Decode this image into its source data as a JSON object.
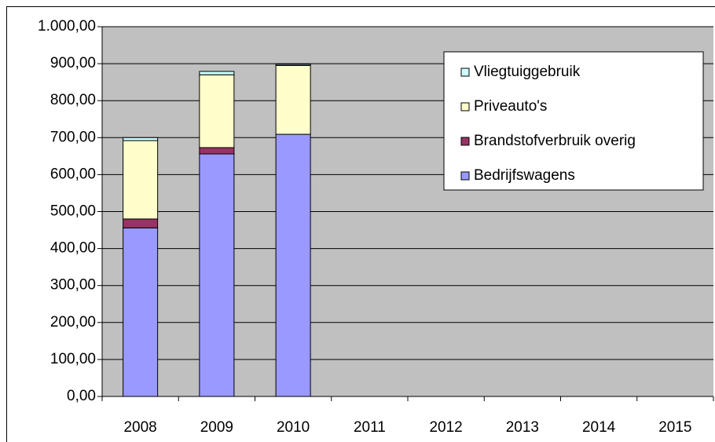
{
  "chart_data": {
    "type": "stacked_bar",
    "categories": [
      "2008",
      "2009",
      "2010",
      "2011",
      "2012",
      "2013",
      "2014",
      "2015"
    ],
    "series": [
      {
        "name": "Bedrijfswagens",
        "color": "#9999ff",
        "values": [
          456,
          656,
          709,
          null,
          null,
          null,
          null,
          null
        ]
      },
      {
        "name": "Brandstofverbruik overig",
        "color": "#993366",
        "values": [
          24,
          17,
          0,
          null,
          null,
          null,
          null,
          null
        ]
      },
      {
        "name": "Priveauto's",
        "color": "#ffffcc",
        "values": [
          212,
          197,
          186,
          null,
          null,
          null,
          null,
          null
        ]
      },
      {
        "name": "Vliegtuiggebruik",
        "color": "#ccffff",
        "values": [
          8,
          9,
          3,
          null,
          null,
          null,
          null,
          null
        ]
      }
    ],
    "ylim": [
      0,
      1000
    ],
    "yticks": [
      {
        "value": 0,
        "label": "0,00"
      },
      {
        "value": 100,
        "label": "100,00"
      },
      {
        "value": 200,
        "label": "200,00"
      },
      {
        "value": 300,
        "label": "300,00"
      },
      {
        "value": 400,
        "label": "400,00"
      },
      {
        "value": 500,
        "label": "500,00"
      },
      {
        "value": 600,
        "label": "600,00"
      },
      {
        "value": 700,
        "label": "700,00"
      },
      {
        "value": 800,
        "label": "800,00"
      },
      {
        "value": 900,
        "label": "900,00"
      },
      {
        "value": 1000,
        "label": "1.000,00"
      }
    ],
    "grid": true,
    "plot_background": "#c0c0c0",
    "legend_position": "upper right"
  }
}
